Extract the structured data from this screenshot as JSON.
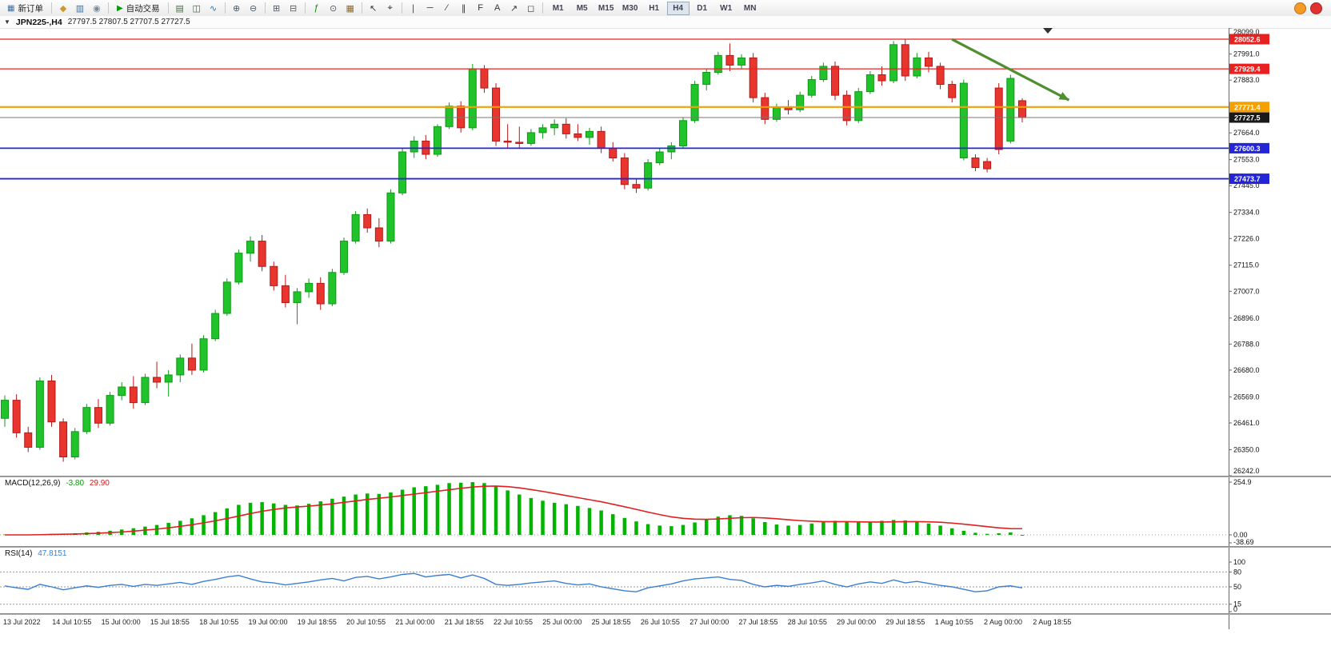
{
  "toolbar": {
    "new_order_label": "新订单",
    "new_order_icon": "▦",
    "auto_trading_label": "自动交易",
    "auto_trading_icon": "▶",
    "groups_mid": [
      [
        {
          "name": "symbols-icon",
          "glyph": "◆",
          "color": "#c99a2c"
        },
        {
          "name": "market-watch-icon",
          "glyph": "▥",
          "color": "#3a6ea5"
        },
        {
          "name": "navigator-icon",
          "glyph": "◉",
          "color": "#7a8a99"
        }
      ]
    ],
    "groups_right": [
      [
        {
          "name": "bar-chart-icon",
          "glyph": "▤",
          "color": "#4a6a4a"
        },
        {
          "name": "candlestick-chart-icon",
          "glyph": "◫",
          "color": "#2f6f2f"
        },
        {
          "name": "line-chart-icon",
          "glyph": "∿",
          "color": "#3a6ea5"
        }
      ],
      [
        {
          "name": "zoom-in-icon",
          "glyph": "⊕",
          "color": "#4a5a6a"
        },
        {
          "name": "zoom-out-icon",
          "glyph": "⊖",
          "color": "#4a5a6a"
        }
      ],
      [
        {
          "name": "tile-windows-icon",
          "glyph": "⊞",
          "color": "#4a5a6a"
        },
        {
          "name": "cascade-windows-icon",
          "glyph": "⊟",
          "color": "#4a5a6a"
        }
      ],
      [
        {
          "name": "indicators-icon",
          "glyph": "ƒ",
          "color": "#0a8a0a"
        },
        {
          "name": "periods-icon",
          "glyph": "⊙",
          "color": "#4a5a6a"
        },
        {
          "name": "templates-icon",
          "glyph": "▦",
          "color": "#8a6a2a"
        }
      ],
      [
        {
          "name": "cursor-icon",
          "glyph": "↖",
          "color": "#333333"
        },
        {
          "name": "crosshair-icon",
          "glyph": "⌖",
          "color": "#333333"
        }
      ],
      [
        {
          "name": "vertical-line-icon",
          "glyph": "∣",
          "color": "#333333"
        },
        {
          "name": "horizontal-line-icon",
          "glyph": "─",
          "color": "#333333"
        },
        {
          "name": "trendline-icon",
          "glyph": "∕",
          "color": "#333333"
        },
        {
          "name": "channel-icon",
          "glyph": "∥",
          "color": "#333333"
        },
        {
          "name": "fibonacci-icon",
          "glyph": "F",
          "color": "#333333"
        },
        {
          "name": "text-icon",
          "glyph": "A",
          "color": "#333333"
        },
        {
          "name": "arrows-icon",
          "glyph": "↗",
          "color": "#333333"
        },
        {
          "name": "shapes-icon",
          "glyph": "◻",
          "color": "#333333"
        }
      ]
    ],
    "timeframes": [
      "M1",
      "M5",
      "M15",
      "M30",
      "H1",
      "H4",
      "D1",
      "W1",
      "MN"
    ],
    "active_timeframe": "H4",
    "right_icons": [
      {
        "name": "community-icon",
        "color": "#f59a23"
      },
      {
        "name": "alerts-icon",
        "color": "#e03030"
      }
    ]
  },
  "chart_header": {
    "collapse_icon": "▼",
    "symbol": "JPN225-,H4",
    "ohlc": "27797.5 27807.5 27707.5 27727.5"
  },
  "indicators": {
    "macd_name": "MACD(12,26,9)",
    "macd_main": "-3.80",
    "macd_signal": "29.90",
    "rsi_name": "RSI(14)",
    "rsi_value": "47.8151"
  },
  "chart_data": [
    {
      "type": "candlestick",
      "title": "JPN225-,H4",
      "timeframe": "H4",
      "current_ohlc": [
        27797.5,
        27807.5,
        27707.5,
        27727.5
      ],
      "y_axis": {
        "min": 26242.0,
        "max": 28099.0,
        "ticks": [
          28099.0,
          27991.0,
          27883.0,
          27664.0,
          27553.0,
          27445.0,
          27334.0,
          27226.0,
          27115.0,
          27007.0,
          26896.0,
          26788.0,
          26680.0,
          26569.0,
          26461.0,
          26350.0,
          26242.0
        ]
      },
      "x_axis_labels": [
        "13 Jul 2022",
        "14 Jul 10:55",
        "15 Jul 00:00",
        "15 Jul 18:55",
        "18 Jul 10:55",
        "19 Jul 00:00",
        "19 Jul 18:55",
        "20 Jul 10:55",
        "21 Jul 00:00",
        "21 Jul 18:55",
        "22 Jul 10:55",
        "25 Jul 00:00",
        "25 Jul 18:55",
        "26 Jul 10:55",
        "27 Jul 00:00",
        "27 Jul 18:55",
        "28 Jul 10:55",
        "29 Jul 00:00",
        "29 Jul 18:55",
        "1 Aug 10:55",
        "2 Aug 00:00",
        "2 Aug 18:55"
      ],
      "levels": [
        {
          "value": 28052.6,
          "label": "28052.6",
          "color": "#e82020",
          "badge": "#e82020",
          "width": 1.2
        },
        {
          "value": 27929.4,
          "label": "27929.4",
          "color": "#e82020",
          "badge": "#e82020",
          "width": 1.2
        },
        {
          "value": 27771.4,
          "label": "27771.4",
          "color": "#f5a000",
          "badge": "#f5a000",
          "width": 2.2
        },
        {
          "value": 27727.5,
          "label": "27727.5",
          "color": "#777777",
          "badge": "#1a1a1a",
          "width": 1
        },
        {
          "value": 27600.3,
          "label": "27600.3",
          "color": "#2424d8",
          "badge": "#2424d8",
          "width": 1.8
        },
        {
          "value": 27473.7,
          "label": "27473.7",
          "color": "#2424d8",
          "badge": "#2424d8",
          "width": 1.8
        }
      ],
      "arrow_annotation": {
        "from_index": 81,
        "from_price": 28052,
        "to_index": 91,
        "to_price": 27800,
        "color": "#4f8f2f"
      },
      "colors": {
        "up": "#21c32b",
        "up_border": "#0f9a18",
        "down": "#e8362e",
        "down_border": "#b31919"
      },
      "candles": [
        [
          26480,
          26575,
          26445,
          26555
        ],
        [
          26555,
          26580,
          26400,
          26420
        ],
        [
          26420,
          26445,
          26340,
          26360
        ],
        [
          26360,
          26650,
          26350,
          26635
        ],
        [
          26635,
          26660,
          26445,
          26465
        ],
        [
          26465,
          26480,
          26300,
          26320
        ],
        [
          26320,
          26440,
          26310,
          26425
        ],
        [
          26425,
          26540,
          26415,
          26525
        ],
        [
          26525,
          26560,
          26440,
          26460
        ],
        [
          26460,
          26590,
          26450,
          26575
        ],
        [
          26575,
          26630,
          26555,
          26610
        ],
        [
          26610,
          26655,
          26520,
          26545
        ],
        [
          26545,
          26665,
          26535,
          26650
        ],
        [
          26650,
          26715,
          26605,
          26630
        ],
        [
          26630,
          26680,
          26570,
          26660
        ],
        [
          26660,
          26745,
          26630,
          26730
        ],
        [
          26730,
          26790,
          26660,
          26680
        ],
        [
          26680,
          26825,
          26670,
          26810
        ],
        [
          26810,
          26930,
          26800,
          26915
        ],
        [
          26915,
          27060,
          26905,
          27045
        ],
        [
          27045,
          27180,
          27035,
          27165
        ],
        [
          27165,
          27235,
          27130,
          27215
        ],
        [
          27215,
          27240,
          27090,
          27110
        ],
        [
          27110,
          27130,
          27010,
          27030
        ],
        [
          27030,
          27075,
          26940,
          26960
        ],
        [
          26960,
          27020,
          26870,
          27005
        ],
        [
          27005,
          27060,
          26980,
          27040
        ],
        [
          27040,
          27065,
          26930,
          26955
        ],
        [
          26955,
          27100,
          26945,
          27085
        ],
        [
          27085,
          27230,
          27075,
          27215
        ],
        [
          27215,
          27340,
          27205,
          27325
        ],
        [
          27325,
          27350,
          27250,
          27270
        ],
        [
          27270,
          27310,
          27190,
          27215
        ],
        [
          27215,
          27430,
          27205,
          27415
        ],
        [
          27415,
          27600,
          27405,
          27585
        ],
        [
          27585,
          27650,
          27560,
          27630
        ],
        [
          27630,
          27655,
          27555,
          27575
        ],
        [
          27575,
          27700,
          27565,
          27690
        ],
        [
          27690,
          27790,
          27680,
          27775
        ],
        [
          27775,
          27795,
          27665,
          27685
        ],
        [
          27685,
          27950,
          27675,
          27930
        ],
        [
          27930,
          27945,
          27830,
          27850
        ],
        [
          27850,
          27870,
          27610,
          27630
        ],
        [
          27630,
          27700,
          27600,
          27625
        ],
        [
          27625,
          27690,
          27600,
          27620
        ],
        [
          27620,
          27680,
          27610,
          27665
        ],
        [
          27665,
          27700,
          27640,
          27685
        ],
        [
          27685,
          27720,
          27655,
          27700
        ],
        [
          27700,
          27725,
          27640,
          27660
        ],
        [
          27660,
          27700,
          27630,
          27645
        ],
        [
          27645,
          27685,
          27615,
          27670
        ],
        [
          27670,
          27690,
          27580,
          27600
        ],
        [
          27600,
          27625,
          27545,
          27560
        ],
        [
          27560,
          27580,
          27430,
          27450
        ],
        [
          27450,
          27475,
          27415,
          27435
        ],
        [
          27435,
          27555,
          27425,
          27540
        ],
        [
          27540,
          27600,
          27530,
          27585
        ],
        [
          27585,
          27625,
          27555,
          27610
        ],
        [
          27610,
          27730,
          27600,
          27715
        ],
        [
          27715,
          27880,
          27705,
          27865
        ],
        [
          27865,
          27930,
          27840,
          27915
        ],
        [
          27915,
          28000,
          27905,
          27985
        ],
        [
          27985,
          28035,
          27920,
          27945
        ],
        [
          27945,
          27990,
          27930,
          27975
        ],
        [
          27975,
          27995,
          27790,
          27810
        ],
        [
          27810,
          27830,
          27700,
          27720
        ],
        [
          27720,
          27785,
          27710,
          27770
        ],
        [
          27770,
          27800,
          27740,
          27760
        ],
        [
          27760,
          27835,
          27750,
          27820
        ],
        [
          27820,
          27900,
          27810,
          27885
        ],
        [
          27885,
          27955,
          27875,
          27940
        ],
        [
          27940,
          27960,
          27800,
          27820
        ],
        [
          27820,
          27840,
          27695,
          27715
        ],
        [
          27715,
          27850,
          27705,
          27835
        ],
        [
          27835,
          27920,
          27825,
          27905
        ],
        [
          27905,
          27940,
          27860,
          27880
        ],
        [
          27880,
          28045,
          27870,
          28030
        ],
        [
          28030,
          28052,
          27880,
          27900
        ],
        [
          27900,
          27995,
          27890,
          27975
        ],
        [
          27975,
          28000,
          27915,
          27940
        ],
        [
          27940,
          27955,
          27845,
          27865
        ],
        [
          27865,
          27880,
          27790,
          27810
        ],
        [
          27560,
          27885,
          27550,
          27870
        ],
        [
          27560,
          27575,
          27505,
          27520
        ],
        [
          27545,
          27560,
          27500,
          27515
        ],
        [
          27850,
          27870,
          27575,
          27595
        ],
        [
          27630,
          27905,
          27620,
          27890
        ],
        [
          27797.5,
          27807.5,
          27707.5,
          27727.5
        ]
      ]
    },
    {
      "type": "bar",
      "name": "MACD(12,26,9)",
      "main_value": -3.8,
      "signal_value": 29.9,
      "y_ticks": [
        {
          "v": 254.9,
          "label": "254.9"
        },
        {
          "v": 0,
          "label": "0.00"
        },
        {
          "v": -38.69,
          "label": "-38.69"
        }
      ],
      "colors": {
        "histogram": "#00b400",
        "signal": "#e02020"
      },
      "histogram": [
        2,
        1,
        -2,
        3,
        5,
        4,
        8,
        12,
        15,
        20,
        26,
        32,
        40,
        48,
        58,
        68,
        80,
        95,
        110,
        128,
        145,
        155,
        158,
        152,
        145,
        142,
        150,
        162,
        175,
        185,
        195,
        200,
        198,
        205,
        218,
        230,
        235,
        242,
        250,
        252,
        255,
        250,
        235,
        215,
        195,
        178,
        165,
        155,
        148,
        140,
        130,
        118,
        100,
        82,
        65,
        52,
        45,
        42,
        48,
        60,
        75,
        88,
        95,
        92,
        80,
        62,
        50,
        45,
        48,
        55,
        62,
        68,
        65,
        60,
        62,
        68,
        72,
        70,
        62,
        55,
        45,
        32,
        20,
        10,
        5,
        8,
        12,
        -3.8
      ],
      "signal": [
        0,
        0,
        0,
        1,
        2,
        3,
        4,
        6,
        8,
        11,
        14,
        18,
        23,
        28,
        34,
        41,
        49,
        58,
        68,
        79,
        91,
        103,
        114,
        123,
        130,
        135,
        139,
        144,
        150,
        157,
        164,
        171,
        177,
        183,
        190,
        197,
        204,
        211,
        218,
        225,
        231,
        235,
        236,
        233,
        227,
        219,
        210,
        200,
        190,
        180,
        170,
        160,
        148,
        136,
        123,
        110,
        98,
        87,
        80,
        76,
        75,
        77,
        80,
        83,
        84,
        82,
        78,
        73,
        69,
        66,
        64,
        64,
        64,
        63,
        62,
        62,
        63,
        64,
        64,
        63,
        61,
        57,
        52,
        46,
        40,
        34,
        30,
        29.9
      ]
    },
    {
      "type": "line",
      "name": "RSI(14)",
      "current_value": 47.8151,
      "range": [
        0,
        100
      ],
      "y_ticks": [
        {
          "v": 100,
          "label": "100"
        },
        {
          "v": 80,
          "label": "80"
        },
        {
          "v": 50,
          "label": "50"
        },
        {
          "v": 15,
          "label": "15"
        },
        {
          "v": 0,
          "label": "0"
        }
      ],
      "levels_dashed": [
        80,
        50,
        15
      ],
      "color": "#3b7fd4",
      "values": [
        52,
        48,
        45,
        55,
        50,
        44,
        48,
        52,
        49,
        53,
        55,
        51,
        55,
        53,
        56,
        59,
        55,
        61,
        65,
        70,
        73,
        66,
        60,
        58,
        54,
        57,
        60,
        64,
        67,
        62,
        69,
        71,
        66,
        70,
        75,
        77,
        70,
        73,
        75,
        68,
        74,
        67,
        55,
        53,
        55,
        58,
        60,
        62,
        57,
        54,
        56,
        50,
        46,
        42,
        40,
        48,
        52,
        56,
        62,
        66,
        68,
        70,
        65,
        63,
        55,
        50,
        53,
        51,
        55,
        58,
        62,
        55,
        50,
        56,
        60,
        57,
        64,
        58,
        61,
        57,
        53,
        50,
        45,
        40,
        42,
        50,
        52,
        47.8
      ]
    }
  ]
}
